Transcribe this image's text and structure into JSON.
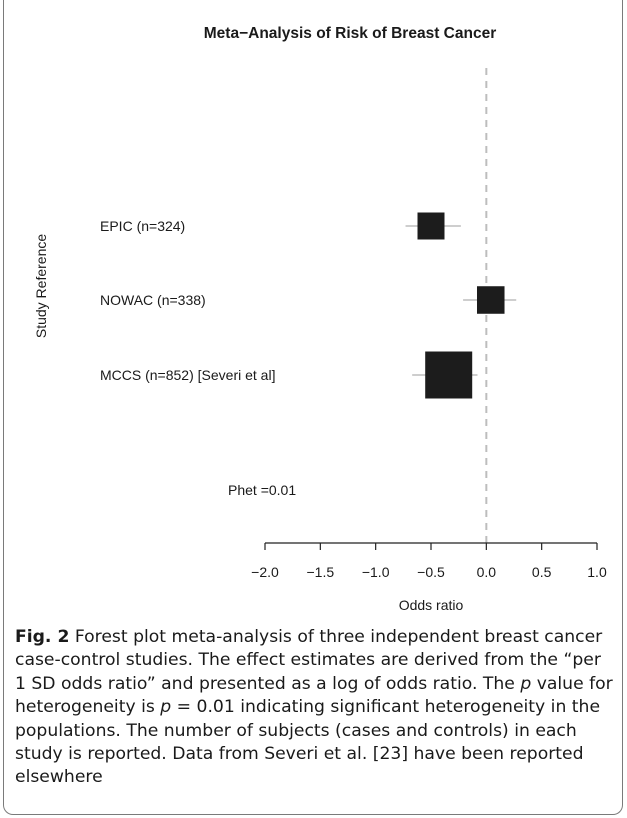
{
  "chart_data": {
    "type": "forest",
    "title": "Meta−Analysis of Risk of Breast Cancer",
    "xlabel": "Odds ratio",
    "ylabel": "Study Reference",
    "xlim": [
      -2.0,
      1.0
    ],
    "ticks": [
      -2.0,
      -1.5,
      -1.0,
      -0.5,
      0.0,
      0.5,
      1.0
    ],
    "tick_labels": [
      "−2.0",
      "−1.5",
      "−1.0",
      "−0.5",
      "0.0",
      "0.5",
      "1.0"
    ],
    "reference_line": 0,
    "studies": [
      {
        "label": "EPIC (n=324)",
        "estimate": -0.5,
        "ci": [
          -0.73,
          -0.23
        ],
        "n": 324
      },
      {
        "label": "NOWAC (n=338)",
        "estimate": 0.04,
        "ci": [
          -0.21,
          0.27
        ],
        "n": 338
      },
      {
        "label": "MCCS (n=852) [Severi et al]",
        "estimate": -0.34,
        "ci": [
          -0.67,
          -0.08
        ],
        "n": 852
      }
    ],
    "annotation": "Phet =0.01",
    "grid": false,
    "colors": {
      "marker": "#1c1c1c",
      "ci": "#bdbdbd",
      "refline": "#bdbdbd",
      "axis": "#222222"
    }
  },
  "caption": {
    "label": "Fig. 2",
    "part1": " Forest plot meta-analysis of three independent breast cancer case-control studies. The effect estimates are derived from the “per 1 SD odds ratio” and presented as a log of odds ratio. The ",
    "p_symbol": "p",
    "part2": " value for heterogeneity is ",
    "p_symbol2": "p",
    "part3": " = 0.01 indicating significant heterogeneity in the populations. The number of subjects (cases and controls) in each study is reported. Data from Severi et al. [23] have been reported elsewhere"
  }
}
